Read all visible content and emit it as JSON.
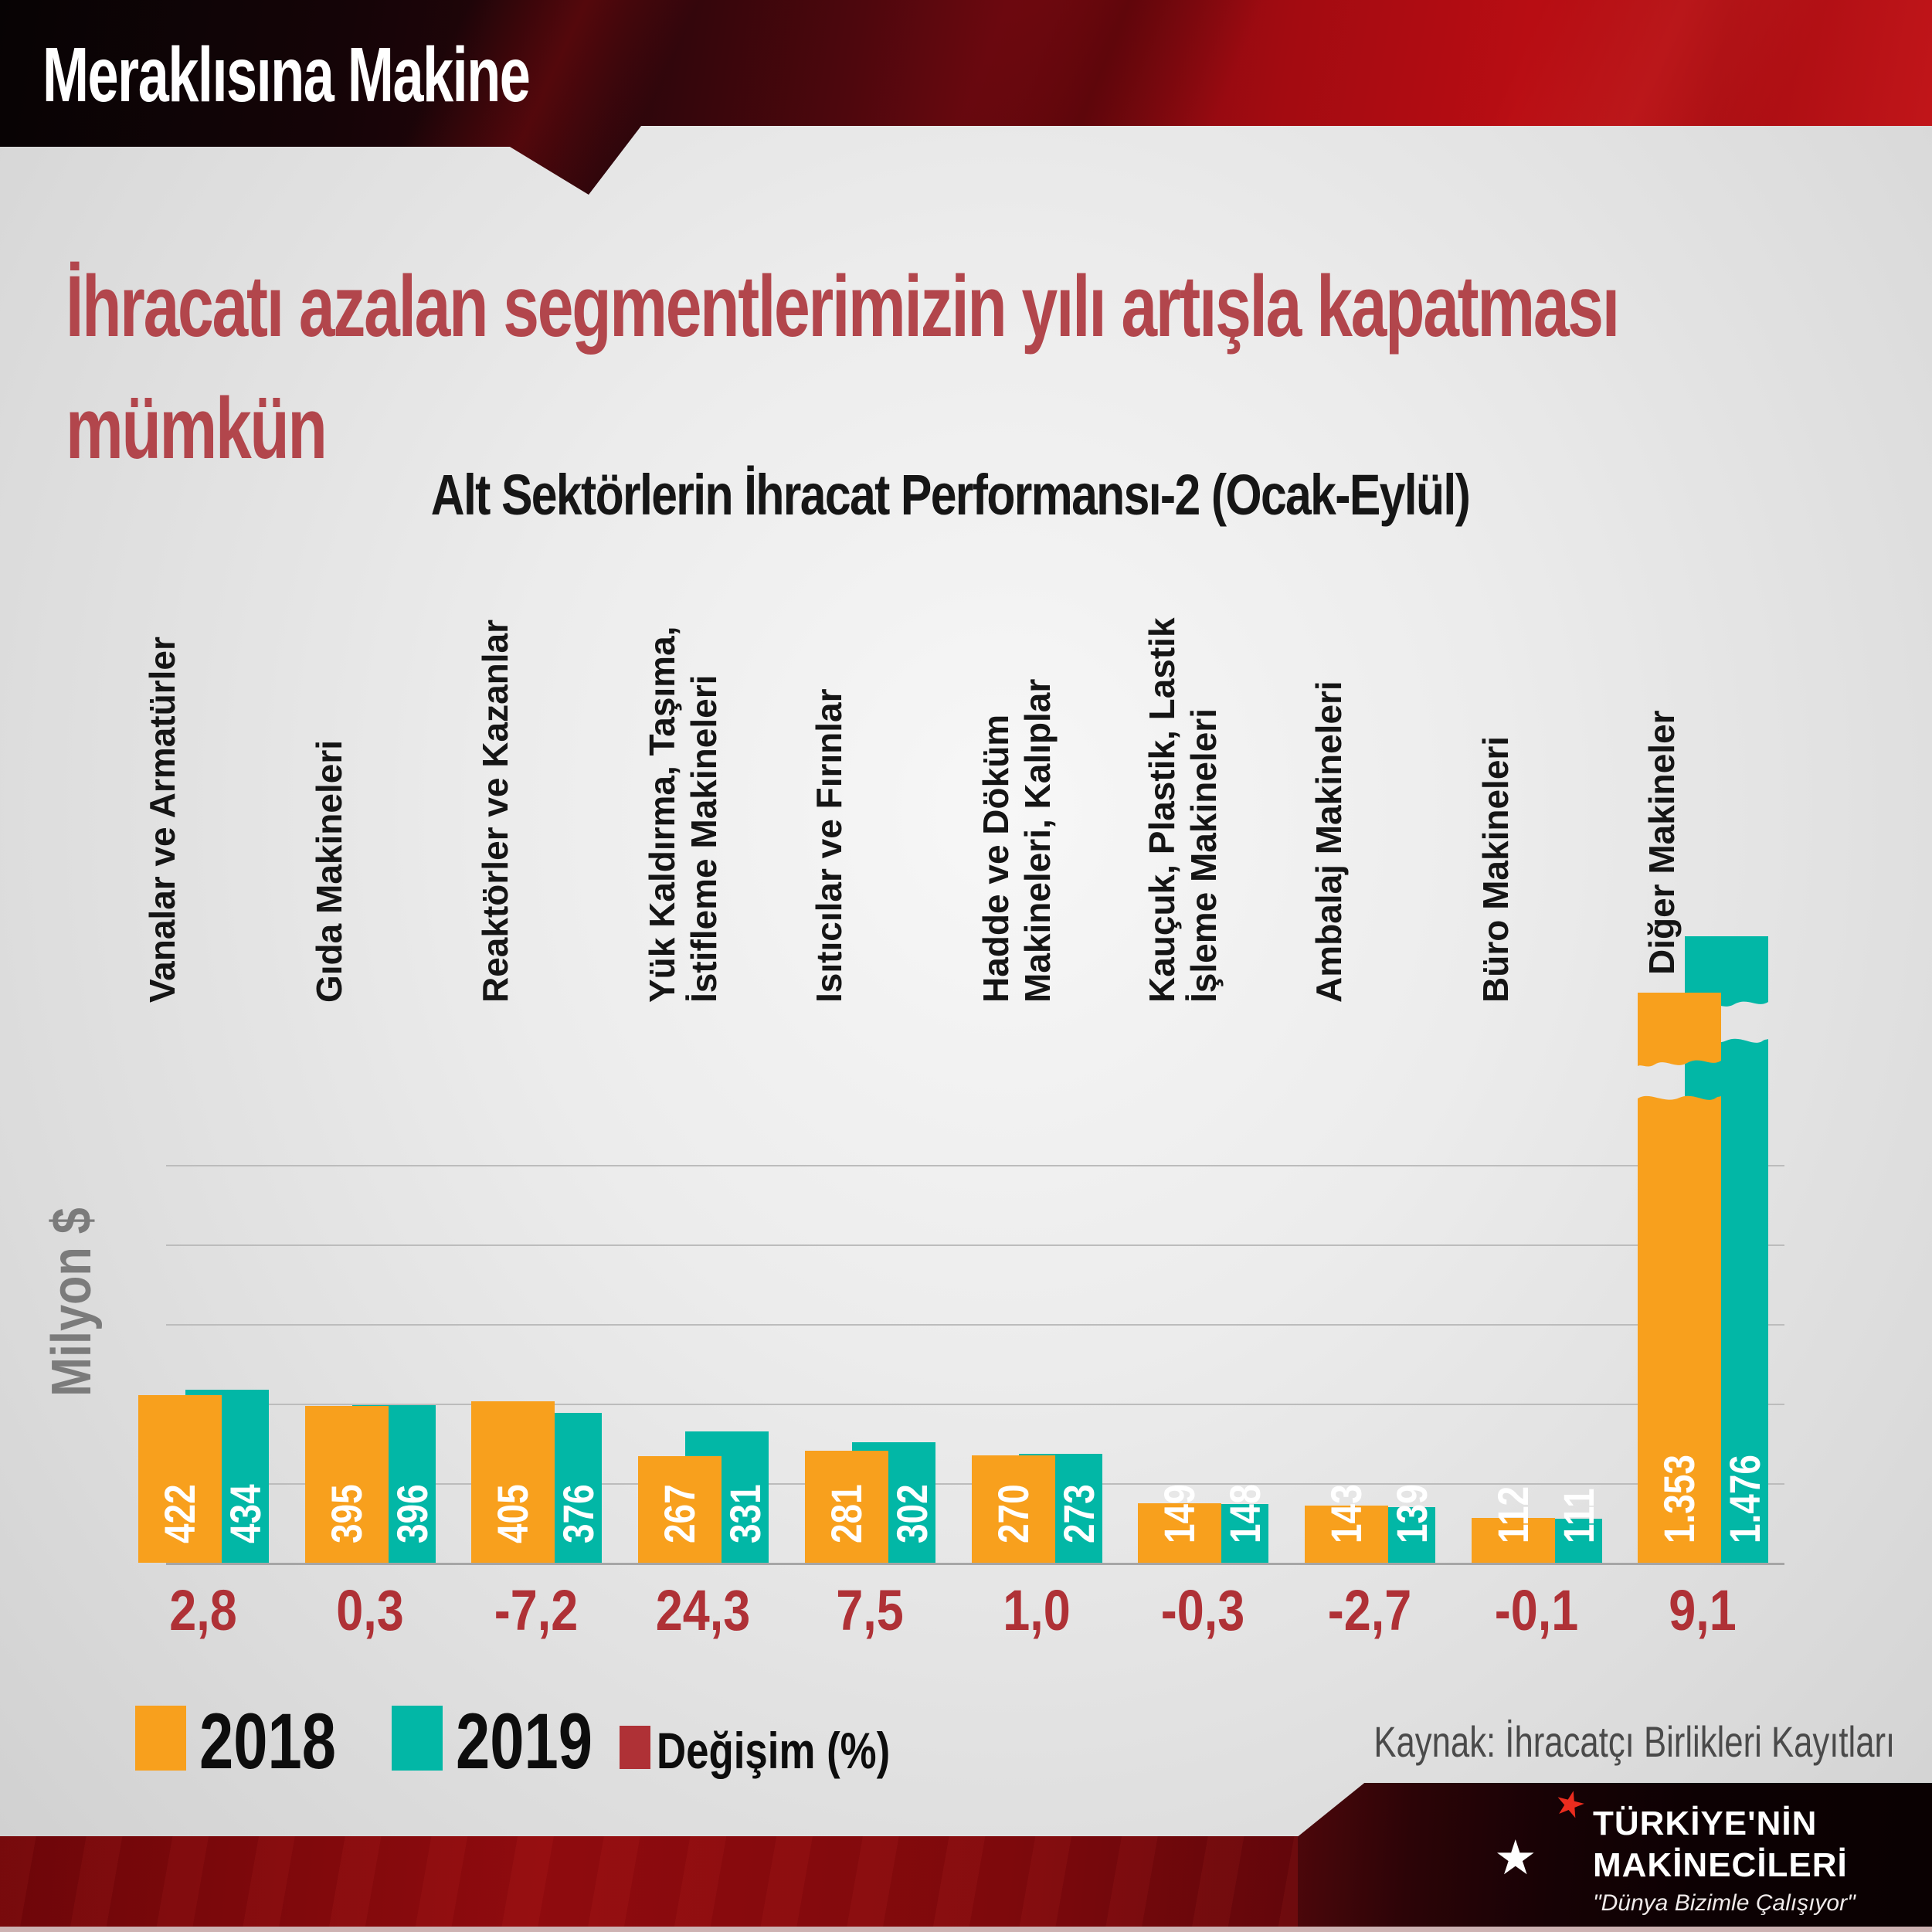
{
  "banner": {
    "brand": "Meraklısına Makine"
  },
  "heading": {
    "line1": "İhracatı azalan segmentlerimizin yılı artışla kapatması",
    "line2": "mümkün"
  },
  "chart_data": {
    "type": "bar",
    "title": "Alt Sektörlerin İhracat Performansı-2 (Ocak-Eylül)",
    "ylabel": "Milyon $",
    "unit": "Milyon $",
    "categories": [
      [
        "Vanalar ve Armatürler"
      ],
      [
        "Gıda Makineleri"
      ],
      [
        "Reaktörler ve Kazanlar"
      ],
      [
        "Yük Kaldırma, Taşıma,",
        "İstifleme Makineleri"
      ],
      [
        "Isıtıcılar ve Fırınlar"
      ],
      [
        "Hadde ve Döküm",
        "Makineleri, Kalıplar"
      ],
      [
        "Kauçuk, Plastik, Lastik",
        "İşleme Makineleri"
      ],
      [
        "Ambalaj Makineleri"
      ],
      [
        "Büro Makineleri"
      ],
      [
        "Diğer Makineler"
      ]
    ],
    "series": [
      {
        "name": "2018",
        "color": "#F8A01D",
        "values": [
          422,
          395,
          405,
          267,
          281,
          270,
          149,
          143,
          112,
          1353
        ],
        "labels": [
          "422",
          "395",
          "405",
          "267",
          "281",
          "270",
          "149",
          "143",
          "112",
          "1.353"
        ]
      },
      {
        "name": "2019",
        "color": "#02B7A6",
        "values": [
          434,
          396,
          376,
          331,
          302,
          273,
          148,
          139,
          111,
          1476
        ],
        "labels": [
          "434",
          "396",
          "376",
          "331",
          "302",
          "273",
          "148",
          "139",
          "111",
          "1.476"
        ]
      }
    ],
    "change_percent": {
      "name": "Değişim (%)",
      "color": "#AF3136",
      "labels": [
        "2,8",
        "0,3",
        "-7,2",
        "24,3",
        "7,5",
        "1,0",
        "-0,3",
        "-2,7",
        "-0,1",
        "9,1"
      ]
    },
    "ylim": [
      0,
      1000
    ],
    "grid_step": 200,
    "grid": "horizontal",
    "axis_break_category_index": 9,
    "legend_position": "bottom-left"
  },
  "source": {
    "text": "Kaynak: İhracatçı Birlikleri Kayıtları"
  },
  "footer_logo": {
    "line1": "TÜRKİYE'NİN",
    "line2": "MAKİNECİLERİ",
    "tagline": "\"Dünya Bizimle Çalışıyor\""
  },
  "colors": {
    "orange_2018": "#F8A01D",
    "teal_2019": "#02B7A6",
    "change_red": "#AF3136",
    "heading_red": "#B2464C",
    "banner_red": "#B80D13",
    "background_gray": "#DCDCDC",
    "grid_gray": "#BCBCBC",
    "footer_red": "#8F0B0E",
    "logo_panel_black": "#0D0103"
  }
}
